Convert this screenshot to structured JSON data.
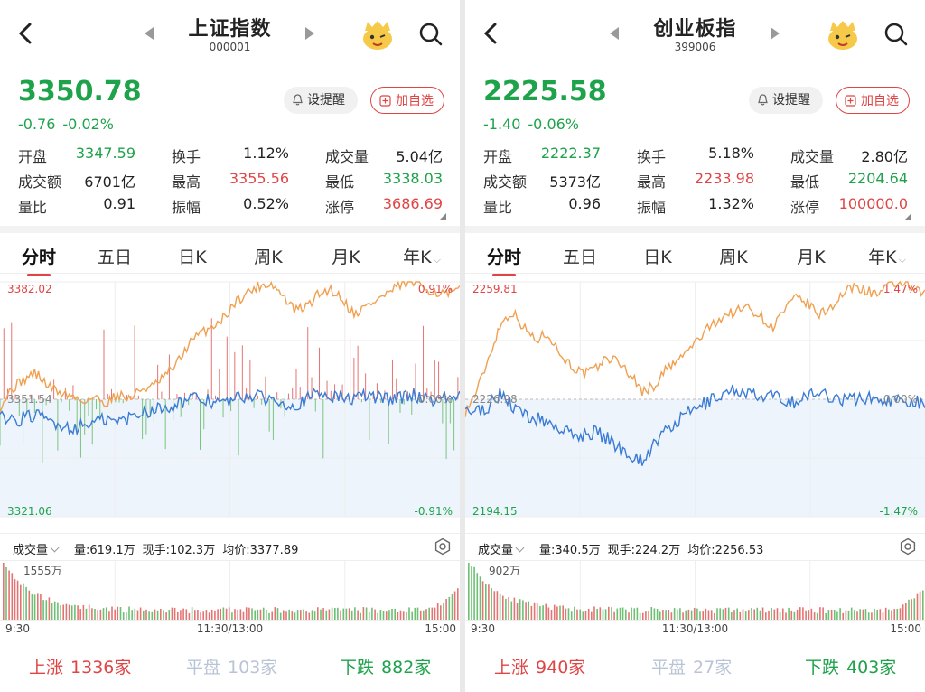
{
  "panels": [
    {
      "title": "上证指数",
      "code": "000001",
      "price": "3350.78",
      "change": "-0.76",
      "change_pct": "-0.02%",
      "alert_label": "设提醒",
      "fav_label": "加自选",
      "stats": [
        [
          {
            "label": "开盘",
            "value": "3347.59",
            "color": "#1ea34b"
          },
          {
            "label": "换手",
            "value": "1.12%",
            "color": "#222"
          },
          {
            "label": "成交量",
            "value": "5.04亿",
            "color": "#222"
          }
        ],
        [
          {
            "label": "成交额",
            "value": "6701亿",
            "color": "#222"
          },
          {
            "label": "最高",
            "value": "3355.56",
            "color": "#e04545"
          },
          {
            "label": "最低",
            "value": "3338.03",
            "color": "#1ea34b"
          }
        ],
        [
          {
            "label": "量比",
            "value": "0.91",
            "color": "#222"
          },
          {
            "label": "振幅",
            "value": "0.52%",
            "color": "#222"
          },
          {
            "label": "涨停",
            "value": "3686.69",
            "color": "#e04545"
          }
        ]
      ],
      "tabs": [
        "分时",
        "五日",
        "日K",
        "周K",
        "月K",
        "年K"
      ],
      "chart_labels": {
        "high": "3382.02",
        "mid": "3351.54",
        "low": "3321.06",
        "pct_up": "0.91%",
        "pct_zero": "0.00%",
        "pct_down": "-0.91%"
      },
      "vol_selector": "成交量",
      "vol_info": [
        "量:619.1万",
        "现手:102.3万",
        "均价:3377.89"
      ],
      "vol_max": "1555万",
      "time_labels": [
        "9:30",
        "11:30/13:00",
        "15:00"
      ],
      "breadth": {
        "up_label": "上涨",
        "up": "1336家",
        "flat_label": "平盘",
        "flat": "103家",
        "down_label": "下跌",
        "down": "882家"
      }
    },
    {
      "title": "创业板指",
      "code": "399006",
      "price": "2225.58",
      "change": "-1.40",
      "change_pct": "-0.06%",
      "alert_label": "设提醒",
      "fav_label": "加自选",
      "stats": [
        [
          {
            "label": "开盘",
            "value": "2222.37",
            "color": "#1ea34b"
          },
          {
            "label": "换手",
            "value": "5.18%",
            "color": "#222"
          },
          {
            "label": "成交量",
            "value": "2.80亿",
            "color": "#222"
          }
        ],
        [
          {
            "label": "成交额",
            "value": "5373亿",
            "color": "#222"
          },
          {
            "label": "最高",
            "value": "2233.98",
            "color": "#e04545"
          },
          {
            "label": "最低",
            "value": "2204.64",
            "color": "#1ea34b"
          }
        ],
        [
          {
            "label": "量比",
            "value": "0.96",
            "color": "#222"
          },
          {
            "label": "振幅",
            "value": "1.32%",
            "color": "#222"
          },
          {
            "label": "涨停",
            "value": "100000.0",
            "color": "#e04545"
          }
        ]
      ],
      "tabs": [
        "分时",
        "五日",
        "日K",
        "周K",
        "月K",
        "年K"
      ],
      "chart_labels": {
        "high": "2259.81",
        "mid": "2226.98",
        "low": "2194.15",
        "pct_up": "1.47%",
        "pct_zero": "0.00%",
        "pct_down": "-1.47%"
      },
      "vol_selector": "成交量",
      "vol_info": [
        "量:340.5万",
        "现手:224.2万",
        "均价:2256.53"
      ],
      "vol_max": "902万",
      "time_labels": [
        "9:30",
        "11:30/13:00",
        "15:00"
      ],
      "breadth": {
        "up_label": "上涨",
        "up": "940家",
        "flat_label": "平盘",
        "flat": "27家",
        "down_label": "下跌",
        "down": "403家"
      }
    }
  ],
  "colors": {
    "up": "#e04545",
    "down": "#1ea34b",
    "orange": "#f0a050",
    "blue": "#3a7bd5"
  },
  "chart_data": [
    {
      "type": "line",
      "title": "",
      "series": [
        {
          "name": "",
          "role": "price"
        },
        {
          "name": "",
          "role": "avg"
        }
      ],
      "ylim": [
        3321.06,
        3382.02
      ],
      "grid": true
    },
    {
      "type": "line",
      "title": "",
      "series": [
        {
          "name": "",
          "role": "price"
        },
        {
          "name": "",
          "role": "avg"
        }
      ],
      "ylim": [
        2194.15,
        2259.81
      ],
      "grid": true
    }
  ]
}
